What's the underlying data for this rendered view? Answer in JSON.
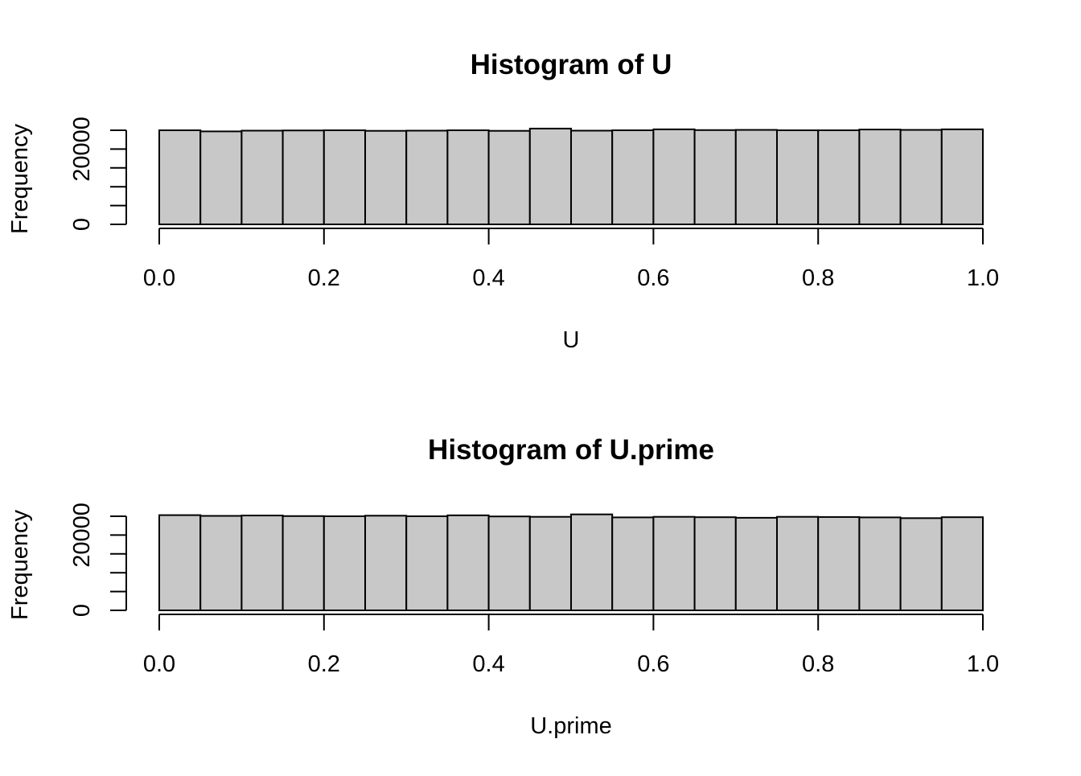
{
  "chart_data": [
    {
      "type": "bar",
      "title": "Histogram of U",
      "xlabel": "U",
      "ylabel": "Frequency",
      "x_ticks": [
        "0.0",
        "0.2",
        "0.4",
        "0.6",
        "0.8",
        "1.0"
      ],
      "y_ticks": [
        "0",
        "20000"
      ],
      "xlim": [
        0,
        1
      ],
      "ylim": [
        0,
        25500
      ],
      "bin_edges": [
        0.0,
        0.05,
        0.1,
        0.15,
        0.2,
        0.25,
        0.3,
        0.35,
        0.4,
        0.45,
        0.5,
        0.55,
        0.6,
        0.65,
        0.7,
        0.75,
        0.8,
        0.85,
        0.9,
        0.95,
        1.0
      ],
      "values": [
        25000,
        24700,
        24900,
        24950,
        25000,
        24850,
        24900,
        25000,
        24850,
        25450,
        24900,
        25000,
        25250,
        25050,
        25100,
        25000,
        25000,
        25200,
        25100,
        25250
      ],
      "grid": false
    },
    {
      "type": "bar",
      "title": "Histogram of U.prime",
      "xlabel": "U.prime",
      "ylabel": "Frequency",
      "x_ticks": [
        "0.0",
        "0.2",
        "0.4",
        "0.6",
        "0.8",
        "1.0"
      ],
      "y_ticks": [
        "0",
        "20000"
      ],
      "xlim": [
        0,
        1
      ],
      "ylim": [
        0,
        25500
      ],
      "bin_edges": [
        0.0,
        0.05,
        0.1,
        0.15,
        0.2,
        0.25,
        0.3,
        0.35,
        0.4,
        0.45,
        0.5,
        0.55,
        0.6,
        0.65,
        0.7,
        0.75,
        0.8,
        0.85,
        0.9,
        0.95,
        1.0
      ],
      "values": [
        25300,
        25100,
        25200,
        25050,
        25000,
        25150,
        25000,
        25250,
        24950,
        24850,
        25500,
        24700,
        24850,
        24750,
        24600,
        24850,
        24800,
        24700,
        24500,
        24750
      ],
      "grid": false
    }
  ]
}
